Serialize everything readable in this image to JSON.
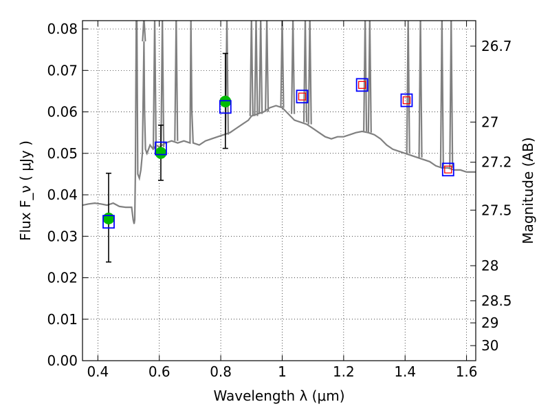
{
  "chart_data": {
    "type": "scatter",
    "title": "",
    "xlabel_text": "Wavelength  λ (μm)",
    "ylabel_text": "Flux  F_ν  ( μJy )",
    "ylabel_right": "Magnitude (AB)",
    "xlim": [
      0.35,
      1.63
    ],
    "ylim": [
      0.0,
      0.082
    ],
    "grid": true,
    "x_ticks": [
      {
        "value": 0.4,
        "label": "0.4"
      },
      {
        "value": 0.6,
        "label": "0.6"
      },
      {
        "value": 0.8,
        "label": "0.8"
      },
      {
        "value": 1.0,
        "label": "1"
      },
      {
        "value": 1.2,
        "label": "1.2"
      },
      {
        "value": 1.4,
        "label": "1.4"
      },
      {
        "value": 1.6,
        "label": "1.6"
      }
    ],
    "y_ticks": [
      {
        "value": 0.0,
        "label": "0.00"
      },
      {
        "value": 0.01,
        "label": "0.01"
      },
      {
        "value": 0.02,
        "label": "0.02"
      },
      {
        "value": 0.03,
        "label": "0.03"
      },
      {
        "value": 0.04,
        "label": "0.04"
      },
      {
        "value": 0.05,
        "label": "0.05"
      },
      {
        "value": 0.06,
        "label": "0.06"
      },
      {
        "value": 0.07,
        "label": "0.07"
      },
      {
        "value": 0.08,
        "label": "0.08"
      }
    ],
    "right_ticks": [
      {
        "mag": 26.7,
        "label": "26.7"
      },
      {
        "mag": 27.0,
        "label": "27"
      },
      {
        "mag": 27.2,
        "label": "27.2"
      },
      {
        "mag": 27.5,
        "label": "27.5"
      },
      {
        "mag": 28.0,
        "label": "28"
      },
      {
        "mag": 28.5,
        "label": "28.5"
      },
      {
        "mag": 29.0,
        "label": "29"
      },
      {
        "mag": 30.0,
        "label": "30"
      }
    ],
    "series": [
      {
        "kind": "spectrum_line",
        "color": "#808080",
        "x": [
          0.35,
          0.37,
          0.39,
          0.41,
          0.43,
          0.45,
          0.47,
          0.49,
          0.51,
          0.515,
          0.518,
          0.52,
          0.522,
          0.525,
          0.527,
          0.53,
          0.535,
          0.54,
          0.545,
          0.55,
          0.552,
          0.555,
          0.56,
          0.57,
          0.58,
          0.59,
          0.6,
          0.62,
          0.64,
          0.66,
          0.68,
          0.7,
          0.703,
          0.706,
          0.71,
          0.73,
          0.75,
          0.77,
          0.79,
          0.81,
          0.83,
          0.85,
          0.87,
          0.89,
          0.9,
          0.92,
          0.94,
          0.96,
          0.98,
          1.0,
          1.02,
          1.04,
          1.06,
          1.08,
          1.1,
          1.12,
          1.14,
          1.16,
          1.18,
          1.2,
          1.22,
          1.24,
          1.26,
          1.28,
          1.3,
          1.32,
          1.34,
          1.36,
          1.38,
          1.4,
          1.42,
          1.44,
          1.46,
          1.48,
          1.5,
          1.52,
          1.54,
          1.56,
          1.58,
          1.6,
          1.63
        ],
        "y": [
          0.0375,
          0.0378,
          0.038,
          0.0378,
          0.0375,
          0.038,
          0.0372,
          0.037,
          0.037,
          0.034,
          0.033,
          0.034,
          0.045,
          0.082,
          0.082,
          0.045,
          0.044,
          0.046,
          0.05,
          0.077,
          0.06,
          0.051,
          0.05,
          0.052,
          0.051,
          0.052,
          0.0515,
          0.0525,
          0.053,
          0.0525,
          0.053,
          0.0525,
          0.082,
          0.06,
          0.0525,
          0.052,
          0.053,
          0.0535,
          0.054,
          0.0545,
          0.055,
          0.056,
          0.057,
          0.058,
          0.059,
          0.0595,
          0.06,
          0.061,
          0.0615,
          0.061,
          0.0595,
          0.058,
          0.0575,
          0.057,
          0.056,
          0.055,
          0.054,
          0.0535,
          0.054,
          0.054,
          0.0545,
          0.055,
          0.0553,
          0.055,
          0.0545,
          0.0535,
          0.052,
          0.051,
          0.0505,
          0.05,
          0.0495,
          0.049,
          0.0485,
          0.048,
          0.047,
          0.0465,
          0.0465,
          0.046,
          0.046,
          0.0455,
          0.0455
        ]
      },
      {
        "kind": "emission_spikes",
        "color": "#808080",
        "x": [
          0.525,
          0.55,
          0.585,
          0.61,
          0.655,
          0.703,
          0.82,
          0.9,
          0.915,
          0.93,
          0.95,
          1.0,
          1.035,
          1.075,
          1.09,
          1.27,
          1.285,
          1.41,
          1.45,
          1.52,
          1.55
        ]
      },
      {
        "kind": "photometry_points",
        "color": "#00bb00",
        "marker": "circle",
        "x": [
          0.435,
          0.605,
          0.815
        ],
        "y": [
          0.0343,
          0.0501,
          0.0625
        ],
        "yerr_low": [
          0.0238,
          0.0435,
          0.0512
        ],
        "yerr_high": [
          0.0452,
          0.0568,
          0.0741
        ]
      },
      {
        "kind": "model_boxes",
        "color": "#0000ff",
        "marker": "open-square",
        "x": [
          0.435,
          0.605,
          0.815,
          1.065,
          1.26,
          1.405,
          1.54
        ],
        "y": [
          0.0335,
          0.0512,
          0.0612,
          0.0637,
          0.0665,
          0.0628,
          0.0461
        ]
      },
      {
        "kind": "upper_boxes",
        "color": "#ff0000",
        "marker": "small-open-square",
        "x": [
          1.065,
          1.26,
          1.405,
          1.54
        ],
        "y": [
          0.0637,
          0.0665,
          0.0628,
          0.0461
        ]
      }
    ]
  }
}
